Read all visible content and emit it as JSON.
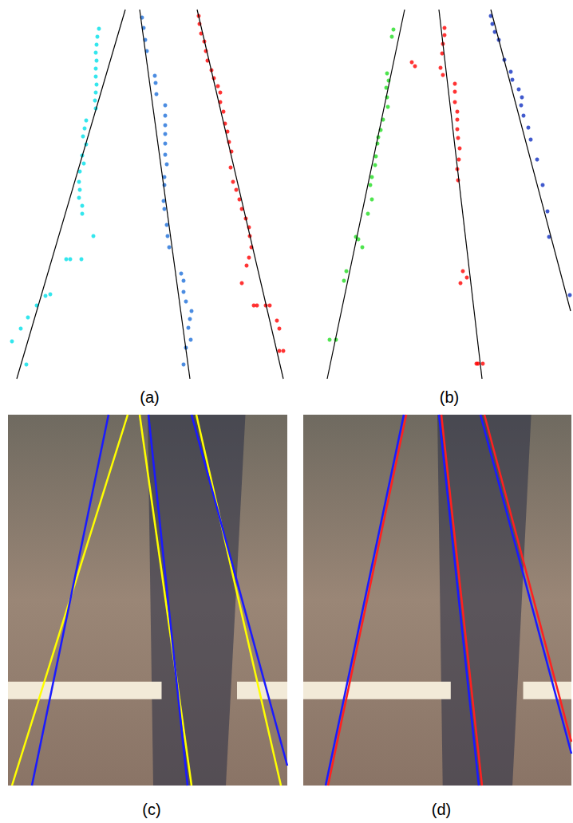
{
  "chart_data": [
    {
      "type": "scatter",
      "title": "(a)",
      "xlim": [
        5,
        360
      ],
      "ylim": [
        10,
        480
      ],
      "tick_labels": false,
      "series": [
        {
          "color": "#00e0e8",
          "marker": "circle",
          "x": [
            124,
            122,
            121,
            120,
            121,
            120,
            120,
            121,
            120,
            119,
            120,
            108,
            106,
            104,
            108,
            103,
            105,
            100,
            99,
            100,
            99,
            103,
            103,
            117,
            83,
            88,
            102,
            63,
            57,
            46,
            35,
            26,
            15,
            33
          ],
          "y": [
            36,
            46,
            56,
            66,
            76,
            86,
            96,
            106,
            116,
            126,
            136,
            151,
            161,
            171,
            181,
            195,
            205,
            215,
            228,
            238,
            248,
            258,
            268,
            296,
            325,
            325,
            325,
            369,
            371,
            383,
            398,
            412,
            428,
            457
          ]
        },
        {
          "color": "#1e6fd9",
          "marker": "circle",
          "x": [
            178,
            180,
            182,
            184,
            194,
            195,
            196,
            207,
            207,
            207,
            207,
            207,
            207,
            209,
            206,
            206,
            205,
            206,
            209,
            210,
            212,
            227,
            230,
            230,
            233,
            240,
            238,
            236,
            239,
            233,
            230
          ],
          "y": [
            22,
            35,
            50,
            64,
            95,
            104,
            118,
            132,
            145,
            157,
            168,
            180,
            194,
            206,
            222,
            232,
            252,
            262,
            282,
            296,
            310,
            343,
            352,
            366,
            378,
            390,
            400,
            411,
            426,
            436,
            457
          ]
        },
        {
          "color": "#ff0000",
          "marker": "circle",
          "x": [
            249,
            250,
            252,
            256,
            258,
            260,
            265,
            268,
            273,
            276,
            276,
            280,
            282,
            285,
            287,
            290,
            289,
            292,
            296,
            300,
            303,
            308,
            312,
            313,
            315,
            312,
            309,
            303,
            318,
            322,
            333,
            338,
            347,
            350,
            350,
            355
          ],
          "y": [
            20,
            30,
            42,
            52,
            64,
            76,
            88,
            98,
            108,
            116,
            128,
            140,
            155,
            165,
            178,
            190,
            210,
            228,
            238,
            250,
            262,
            274,
            285,
            296,
            310,
            323,
            333,
            355,
            383,
            383,
            383,
            383,
            402,
            412,
            440,
            440
          ]
        },
        {
          "type": "line",
          "color": "#000000",
          "x": [
            21,
            157
          ],
          "y": [
            475,
            12
          ]
        },
        {
          "type": "line",
          "color": "#000000",
          "x": [
            175,
            238
          ],
          "y": [
            12,
            475
          ]
        },
        {
          "type": "line",
          "color": "#000000",
          "x": [
            247,
            355
          ],
          "y": [
            12,
            475
          ]
        }
      ]
    },
    {
      "type": "scatter",
      "title": "(b)",
      "xlim": [
        400,
        716
      ],
      "ylim": [
        10,
        480
      ],
      "tick_labels": false,
      "series": [
        {
          "color": "#22dd22",
          "marker": "circle",
          "x": [
            493,
            491,
            485,
            487,
            484,
            485,
            486,
            480,
            477,
            474,
            473,
            471,
            470,
            466,
            464,
            466,
            461,
            446,
            449,
            454,
            434,
            431,
            413,
            421
          ],
          "y": [
            37,
            46,
            92,
            101,
            110,
            122,
            134,
            150,
            163,
            172,
            180,
            196,
            207,
            222,
            232,
            250,
            268,
            297,
            300,
            310,
            340,
            352,
            426,
            426
          ]
        },
        {
          "color": "#ff0000",
          "marker": "circle",
          "x": [
            557,
            557,
            555,
            554,
            516,
            520,
            552,
            555,
            570,
            570,
            570,
            573,
            573,
            573,
            574,
            576,
            575,
            573,
            574,
            580,
            585,
            577,
            597,
            599,
            605
          ],
          "y": [
            35,
            44,
            55,
            67,
            78,
            83,
            85,
            94,
            105,
            115,
            128,
            140,
            150,
            162,
            173,
            186,
            200,
            212,
            226,
            340,
            348,
            355,
            456,
            456,
            456
          ]
        },
        {
          "color": "#1030c0",
          "marker": "circle",
          "x": [
            615,
            617,
            620,
            625,
            632,
            640,
            642,
            650,
            654,
            653,
            656,
            662,
            665,
            673,
            680,
            686,
            688,
            714
          ],
          "y": [
            20,
            30,
            40,
            50,
            75,
            90,
            100,
            112,
            122,
            132,
            145,
            160,
            175,
            200,
            232,
            265,
            297,
            370
          ]
        },
        {
          "type": "line",
          "color": "#000000",
          "x": [
            410,
            507
          ],
          "y": [
            475,
            12
          ]
        },
        {
          "type": "line",
          "color": "#000000",
          "x": [
            550,
            604
          ],
          "y": [
            12,
            475
          ]
        },
        {
          "type": "line",
          "color": "#000000",
          "x": [
            615,
            715
          ],
          "y": [
            12,
            390
          ]
        }
      ]
    },
    {
      "type": "line",
      "title": "(c)",
      "xlim": [
        10,
        360
      ],
      "ylim": [
        520,
        985
      ],
      "tick_labels": false,
      "series": [
        {
          "color": "#ffff00",
          "x": [
            15,
            160
          ],
          "y": [
            985,
            520
          ]
        },
        {
          "color": "#ffff00",
          "x": [
            175,
            240
          ],
          "y": [
            520,
            985
          ]
        },
        {
          "color": "#ffff00",
          "x": [
            246,
            352
          ],
          "y": [
            520,
            985
          ]
        },
        {
          "color": "#1a1aff",
          "x": [
            40,
            136
          ],
          "y": [
            985,
            520
          ]
        },
        {
          "color": "#1a1aff",
          "x": [
            186,
            235
          ],
          "y": [
            520,
            985
          ]
        },
        {
          "color": "#1a1aff",
          "x": [
            240,
            360
          ],
          "y": [
            520,
            960
          ]
        }
      ]
    },
    {
      "type": "line",
      "title": "(d)",
      "xlim": [
        380,
        716
      ],
      "ylim": [
        520,
        985
      ],
      "tick_labels": false,
      "series": [
        {
          "color": "#ff2020",
          "x": [
            411,
            509
          ],
          "y": [
            985,
            520
          ]
        },
        {
          "color": "#ff2020",
          "x": [
            553,
            604
          ],
          "y": [
            520,
            985
          ]
        },
        {
          "color": "#ff2020",
          "x": [
            607,
            716
          ],
          "y": [
            520,
            930
          ]
        },
        {
          "color": "#1a1aff",
          "x": [
            408,
            506
          ],
          "y": [
            985,
            520
          ]
        },
        {
          "color": "#1a1aff",
          "x": [
            550,
            600
          ],
          "y": [
            520,
            985
          ]
        },
        {
          "color": "#1a1aff",
          "x": [
            602,
            716
          ],
          "y": [
            520,
            945
          ]
        }
      ]
    }
  ]
}
